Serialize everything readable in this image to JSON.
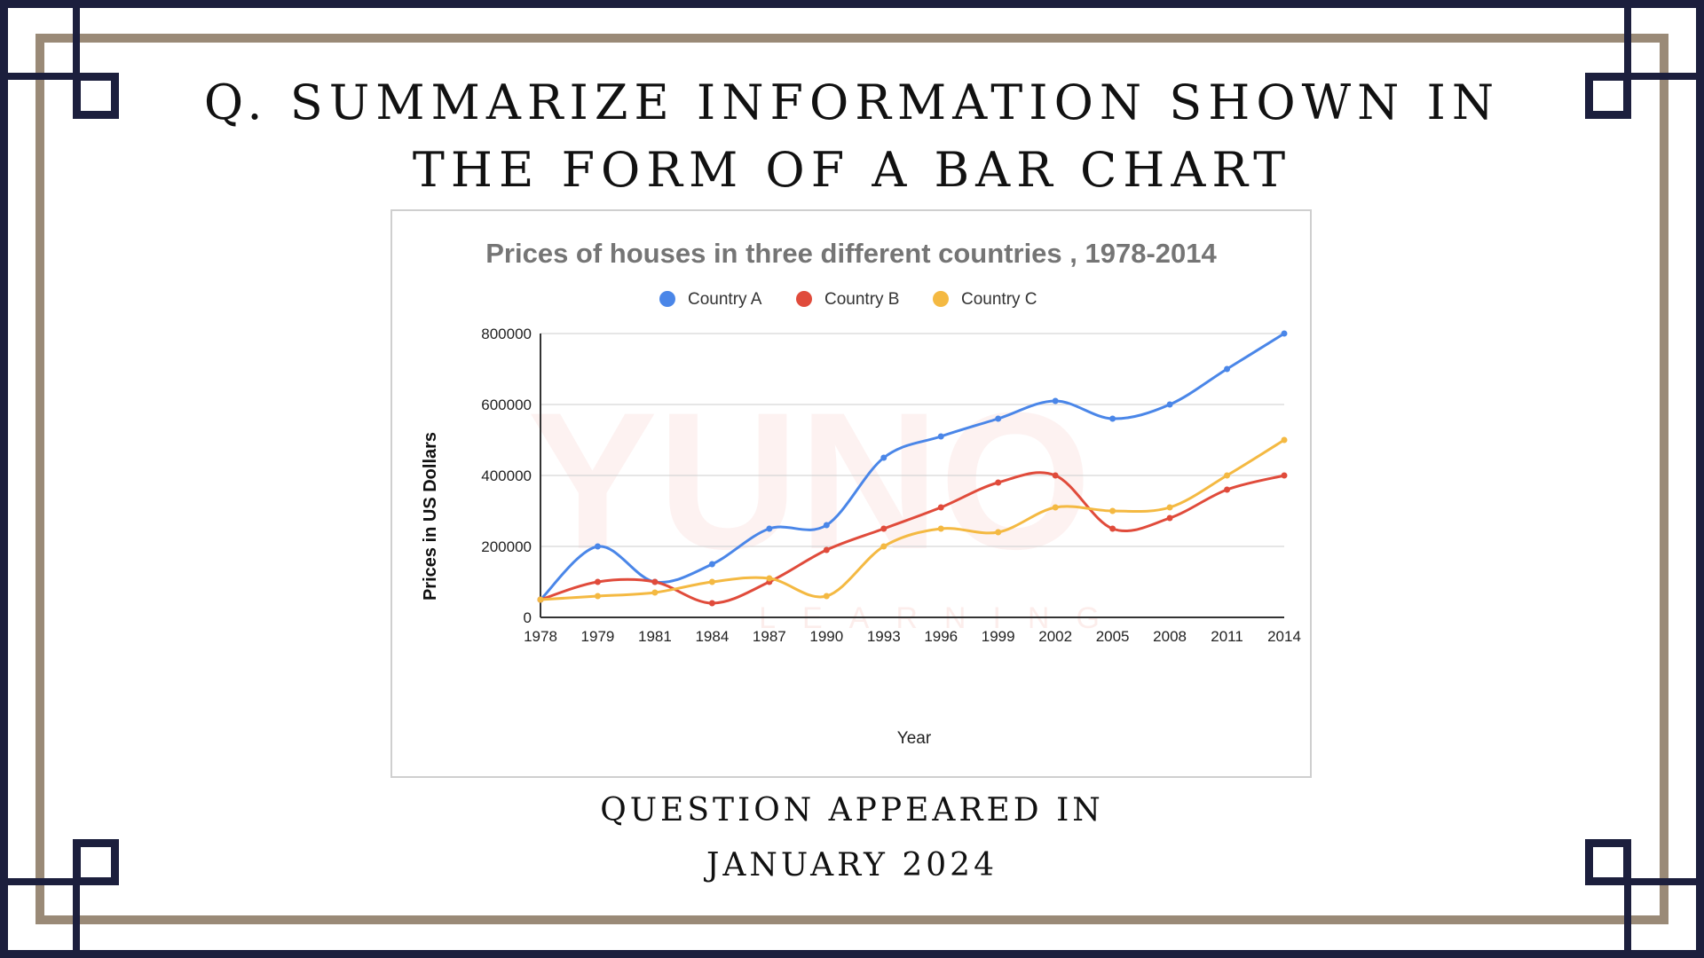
{
  "question": {
    "title": "Q. SUMMARIZE INFORMATION SHOWN IN THE FORM OF A BAR CHART",
    "footer_line1": "QUESTION APPEARED IN",
    "footer_line2": "JANUARY 2024"
  },
  "colors": {
    "navy": "#1c1f3d",
    "taupe": "#9a8a77",
    "country_a": "#4a86e8",
    "country_b": "#e04b3b",
    "country_c": "#f4b942"
  },
  "watermark": {
    "text": "YUNO",
    "subtext": "LEARNING"
  },
  "chart_data": {
    "type": "line",
    "title": "Prices of houses in three different countries , 1978-2014",
    "xlabel": "Year",
    "ylabel": "Prices in US Dollars",
    "categories": [
      "1978",
      "1979",
      "1981",
      "1984",
      "1987",
      "1990",
      "1993",
      "1996",
      "1999",
      "2002",
      "2005",
      "2008",
      "2011",
      "2014"
    ],
    "ylim": [
      0,
      800000
    ],
    "yticks": [
      "0",
      "200000",
      "400000",
      "600000",
      "800000"
    ],
    "grid": true,
    "legend_position": "top",
    "series": [
      {
        "name": "Country A",
        "color": "#4a86e8",
        "values": [
          50000,
          200000,
          100000,
          150000,
          250000,
          260000,
          450000,
          510000,
          560000,
          610000,
          560000,
          600000,
          700000,
          800000
        ]
      },
      {
        "name": "Country B",
        "color": "#e04b3b",
        "values": [
          50000,
          100000,
          100000,
          40000,
          100000,
          190000,
          250000,
          310000,
          380000,
          400000,
          250000,
          280000,
          360000,
          400000
        ]
      },
      {
        "name": "Country C",
        "color": "#f4b942",
        "values": [
          50000,
          60000,
          70000,
          100000,
          110000,
          60000,
          200000,
          250000,
          240000,
          310000,
          300000,
          310000,
          400000,
          500000
        ]
      }
    ]
  }
}
